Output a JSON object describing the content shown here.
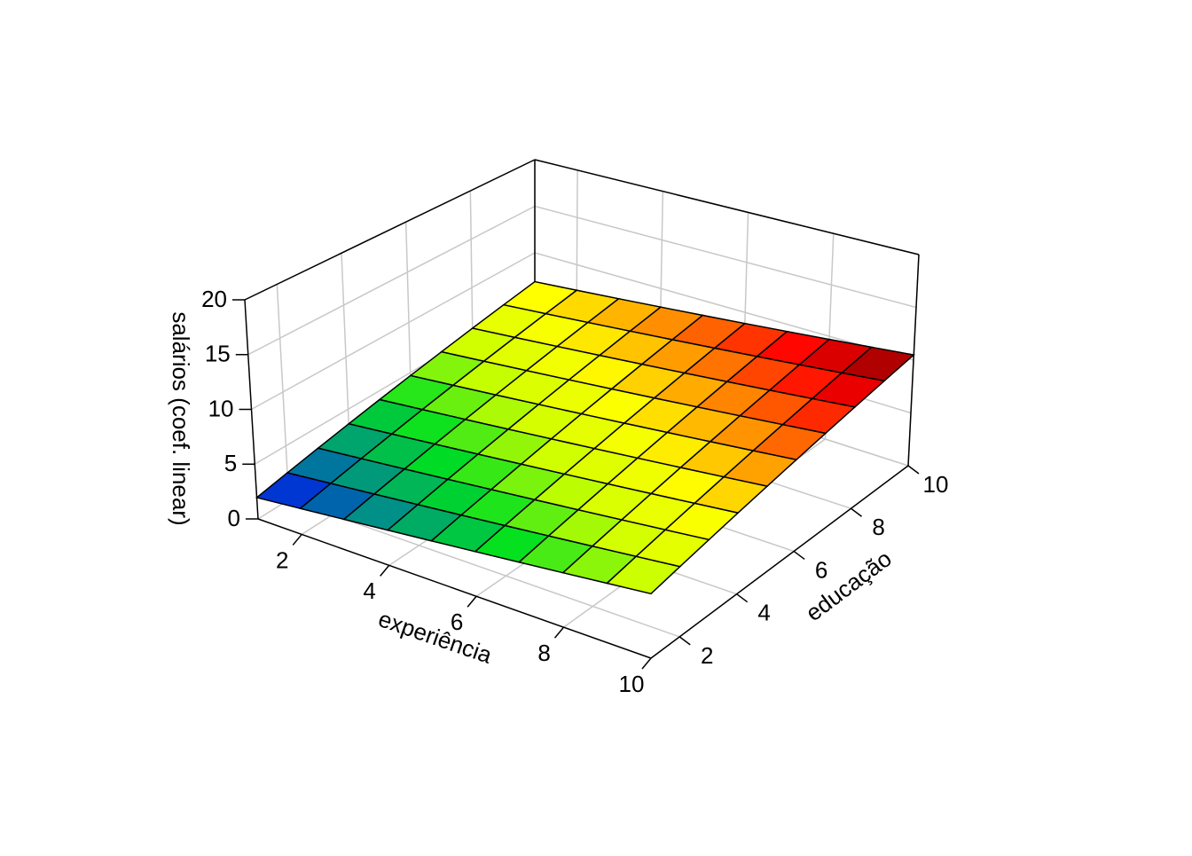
{
  "chart_data": {
    "type": "surface",
    "xlabel": "experiência",
    "ylabel": "educação",
    "zlabel": "salários (coef. linear)",
    "x": [
      1,
      2,
      3,
      4,
      5,
      6,
      7,
      8,
      9,
      10
    ],
    "y": [
      1,
      2,
      3,
      4,
      5,
      6,
      7,
      8,
      9,
      10
    ],
    "z": [
      [
        1.95,
        2.5,
        3.05,
        3.6,
        4.15,
        4.7,
        5.25,
        5.8,
        6.35,
        6.9
      ],
      [
        2.35,
        2.9,
        3.45,
        4,
        4.55,
        5.1,
        5.65,
        6.2,
        6.75,
        7.3
      ],
      [
        2.75,
        3.3,
        3.85,
        4.4,
        4.95,
        5.5,
        6.05,
        6.6,
        7.15,
        7.7
      ],
      [
        3.15,
        3.7,
        4.25,
        4.8,
        5.35,
        5.9,
        6.45,
        7,
        7.55,
        8.1
      ],
      [
        3.55,
        4.1,
        4.65,
        5.2,
        5.75,
        6.3,
        6.85,
        7.4,
        7.95,
        8.5
      ],
      [
        3.95,
        4.5,
        5.05,
        5.6,
        6.15,
        6.7,
        7.25,
        7.8,
        8.35,
        8.9
      ],
      [
        4.35,
        4.9,
        5.45,
        6,
        6.55,
        7.1,
        7.65,
        8.2,
        8.75,
        9.3
      ],
      [
        4.75,
        5.3,
        5.85,
        6.4,
        6.95,
        7.5,
        8.05,
        8.6,
        9.15,
        9.7
      ],
      [
        5.15,
        5.7,
        6.25,
        6.8,
        7.35,
        7.9,
        8.45,
        9,
        9.55,
        10.1
      ],
      [
        5.55,
        6.1,
        6.65,
        7.2,
        7.75,
        8.3,
        8.85,
        9.4,
        9.95,
        10.5
      ]
    ],
    "xlim": [
      1,
      10
    ],
    "ylim": [
      1,
      10
    ],
    "zlim": [
      0,
      20
    ],
    "xticks": [
      2,
      4,
      6,
      8,
      10
    ],
    "yticks": [
      2,
      4,
      6,
      8,
      10
    ],
    "zticks": [
      0,
      5,
      10,
      15,
      20
    ],
    "colorscale": [
      "#0000ff",
      "#008c8c",
      "#00e020",
      "#ccff00",
      "#ffff00",
      "#ff8c00",
      "#ff0000",
      "#800000"
    ],
    "grid": true
  }
}
